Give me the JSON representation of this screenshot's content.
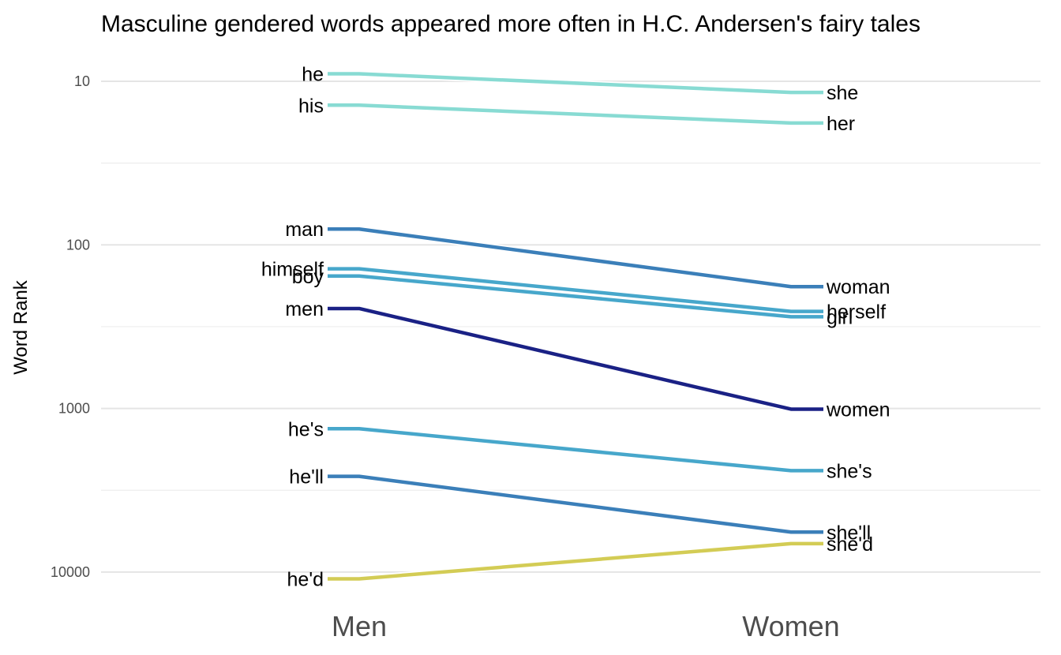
{
  "chart_data": {
    "type": "line",
    "title": "Masculine gendered words appeared more often in H.C. Andersen's fairy tales",
    "ylabel": "Word Rank",
    "xlabel": "",
    "x": [
      "Men",
      "Women"
    ],
    "y_scale": "log10-reversed",
    "y_ticks": [
      "10",
      "100",
      "1000",
      "10000"
    ],
    "ylim": [
      7,
      12500
    ],
    "grid": true,
    "pairs": [
      {
        "male": "he",
        "female": "she",
        "men_rank": 9,
        "women_rank": 11.7,
        "color": "#88dbd3"
      },
      {
        "male": "his",
        "female": "her",
        "men_rank": 14,
        "women_rank": 18,
        "color": "#88dbd3"
      },
      {
        "male": "man",
        "female": "woman",
        "men_rank": 80,
        "women_rank": 180,
        "color": "#3b7fb9"
      },
      {
        "male": "himself",
        "female": "herself",
        "men_rank": 140,
        "women_rank": 255,
        "color": "#47a7cb"
      },
      {
        "male": "boy",
        "female": "girl",
        "men_rank": 155,
        "women_rank": 275,
        "color": "#47a7cb"
      },
      {
        "male": "men",
        "female": "women",
        "men_rank": 245,
        "women_rank": 1010,
        "color": "#1a2185"
      },
      {
        "male": "he's",
        "female": "she's",
        "men_rank": 1330,
        "women_rank": 2400,
        "color": "#47a7cb"
      },
      {
        "male": "he'll",
        "female": "she'll",
        "men_rank": 2600,
        "women_rank": 5700,
        "color": "#3b7fb9"
      },
      {
        "male": "he'd",
        "female": "she'd",
        "men_rank": 11000,
        "women_rank": 6700,
        "color": "#d3cc55"
      }
    ]
  }
}
